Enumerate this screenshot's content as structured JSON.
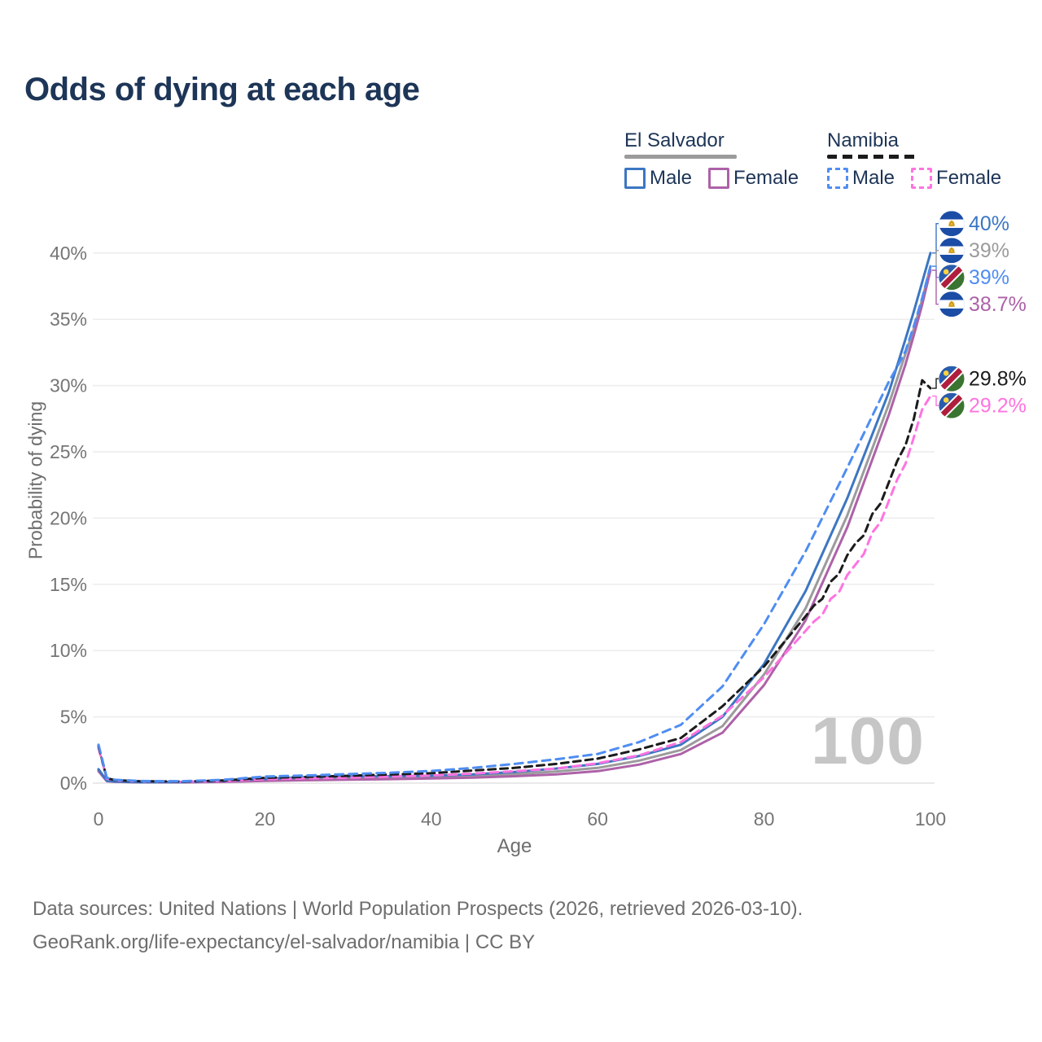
{
  "title": "Odds of dying at each age",
  "legend": {
    "groups": [
      {
        "country": "El Salvador",
        "style": "solid",
        "items": [
          {
            "label": "Male",
            "color": "#3c76c2",
            "dashed": false
          },
          {
            "label": "Female",
            "color": "#ad62a8",
            "dashed": false
          }
        ]
      },
      {
        "country": "Namibia",
        "style": "dashed",
        "items": [
          {
            "label": "Male",
            "color": "#4f8df2",
            "dashed": true
          },
          {
            "label": "Female",
            "color": "#ff73e1",
            "dashed": true
          }
        ]
      }
    ]
  },
  "footer": {
    "line1": "Data sources: United Nations | World Population Prospects (2026, retrieved 2026-03-10).",
    "line2": "GeoRank.org/life-expectancy/el-salvador/namibia | CC BY"
  },
  "chart_data": {
    "type": "line",
    "title": "Odds of dying at each age",
    "xlabel": "Age",
    "ylabel": "Probability of dying",
    "xlim": [
      0,
      100
    ],
    "ylim": [
      0,
      43
    ],
    "grid": "horizontal",
    "legend_position": "top-right",
    "watermark": "100",
    "xticks": [
      0,
      20,
      40,
      60,
      80,
      100
    ],
    "yticks": [
      {
        "value": 0,
        "label": "0%"
      },
      {
        "value": 5,
        "label": "5%"
      },
      {
        "value": 10,
        "label": "10%"
      },
      {
        "value": 15,
        "label": "15%"
      },
      {
        "value": 20,
        "label": "20%"
      },
      {
        "value": 25,
        "label": "25%"
      },
      {
        "value": 30,
        "label": "30%"
      },
      {
        "value": 35,
        "label": "35%"
      },
      {
        "value": 40,
        "label": "40%"
      }
    ],
    "series": [
      {
        "id": "es-total",
        "name": "El Salvador (both sexes)",
        "country": "El Salvador",
        "sex": "total",
        "color": "#9b9b9b",
        "dash": null,
        "flag": "sv",
        "end_label": "39%",
        "values": [
          [
            0,
            1.0
          ],
          [
            1,
            0.16
          ],
          [
            2,
            0.11
          ],
          [
            5,
            0.06
          ],
          [
            10,
            0.07
          ],
          [
            15,
            0.12
          ],
          [
            20,
            0.25
          ],
          [
            25,
            0.32
          ],
          [
            30,
            0.38
          ],
          [
            35,
            0.42
          ],
          [
            40,
            0.45
          ],
          [
            45,
            0.55
          ],
          [
            50,
            0.68
          ],
          [
            55,
            0.88
          ],
          [
            60,
            1.15
          ],
          [
            65,
            1.7
          ],
          [
            70,
            2.5
          ],
          [
            75,
            4.3
          ],
          [
            80,
            8.2
          ],
          [
            85,
            13.2
          ],
          [
            90,
            20.2
          ],
          [
            95,
            28.6
          ],
          [
            97,
            32.4
          ],
          [
            98,
            34.3
          ],
          [
            99,
            36.5
          ],
          [
            100,
            39
          ]
        ]
      },
      {
        "id": "es-female",
        "name": "El Salvador Female",
        "country": "El Salvador",
        "sex": "female",
        "color": "#ad62a8",
        "dash": null,
        "flag": "sv",
        "end_label": "38.7%",
        "values": [
          [
            0,
            0.9
          ],
          [
            1,
            0.15
          ],
          [
            2,
            0.1
          ],
          [
            5,
            0.06
          ],
          [
            10,
            0.06
          ],
          [
            15,
            0.09
          ],
          [
            20,
            0.17
          ],
          [
            25,
            0.22
          ],
          [
            30,
            0.26
          ],
          [
            35,
            0.3
          ],
          [
            40,
            0.35
          ],
          [
            45,
            0.42
          ],
          [
            50,
            0.52
          ],
          [
            55,
            0.66
          ],
          [
            60,
            0.9
          ],
          [
            65,
            1.4
          ],
          [
            70,
            2.2
          ],
          [
            75,
            3.8
          ],
          [
            80,
            7.4
          ],
          [
            85,
            12.3
          ],
          [
            90,
            19.3
          ],
          [
            95,
            27.8
          ],
          [
            97,
            31.6
          ],
          [
            98,
            33.8
          ],
          [
            99,
            36.1
          ],
          [
            100,
            38.7
          ]
        ]
      },
      {
        "id": "es-male",
        "name": "El Salvador Male",
        "country": "El Salvador",
        "sex": "male",
        "color": "#3c76c2",
        "dash": null,
        "flag": "sv",
        "end_label": "40%",
        "values": [
          [
            0,
            1.05
          ],
          [
            1,
            0.18
          ],
          [
            2,
            0.12
          ],
          [
            5,
            0.07
          ],
          [
            10,
            0.08
          ],
          [
            15,
            0.16
          ],
          [
            20,
            0.32
          ],
          [
            25,
            0.44
          ],
          [
            30,
            0.5
          ],
          [
            35,
            0.52
          ],
          [
            40,
            0.56
          ],
          [
            45,
            0.66
          ],
          [
            50,
            0.85
          ],
          [
            55,
            1.1
          ],
          [
            60,
            1.45
          ],
          [
            65,
            2.05
          ],
          [
            70,
            2.9
          ],
          [
            75,
            5.0
          ],
          [
            80,
            9.0
          ],
          [
            85,
            14.5
          ],
          [
            90,
            21.5
          ],
          [
            95,
            29.5
          ],
          [
            97,
            33.5
          ],
          [
            98,
            35.6
          ],
          [
            99,
            37.8
          ],
          [
            100,
            40
          ]
        ]
      },
      {
        "id": "na-female",
        "name": "Namibia Female",
        "country": "Namibia",
        "sex": "female",
        "color": "#ff73e1",
        "dash": [
          10,
          7
        ],
        "flag": "na",
        "end_label": "29.2%",
        "values": [
          [
            0,
            2.65
          ],
          [
            1,
            0.34
          ],
          [
            2,
            0.21
          ],
          [
            5,
            0.13
          ],
          [
            10,
            0.11
          ],
          [
            15,
            0.16
          ],
          [
            20,
            0.3
          ],
          [
            25,
            0.36
          ],
          [
            30,
            0.42
          ],
          [
            35,
            0.5
          ],
          [
            40,
            0.58
          ],
          [
            45,
            0.72
          ],
          [
            50,
            0.9
          ],
          [
            55,
            1.1
          ],
          [
            60,
            1.5
          ],
          [
            65,
            2.1
          ],
          [
            70,
            3.1
          ],
          [
            75,
            5.1
          ],
          [
            80,
            8.0
          ],
          [
            85,
            11.5
          ],
          [
            86,
            12.2
          ],
          [
            87,
            12.7
          ],
          [
            88,
            13.9
          ],
          [
            89,
            14.4
          ],
          [
            90,
            15.7
          ],
          [
            91,
            16.5
          ],
          [
            92,
            17.3
          ],
          [
            93,
            18.9
          ],
          [
            94,
            19.7
          ],
          [
            95,
            21.3
          ],
          [
            96,
            22.9
          ],
          [
            97,
            24.1
          ],
          [
            98,
            26.1
          ],
          [
            99,
            28.2
          ],
          [
            100,
            29.2
          ]
        ]
      },
      {
        "id": "na-total",
        "name": "Namibia (both sexes)",
        "country": "Namibia",
        "sex": "total",
        "color": "#1b1b1b",
        "dash": [
          9,
          6
        ],
        "flag": "na",
        "end_label": "29.8%",
        "values": [
          [
            0,
            2.8
          ],
          [
            1,
            0.37
          ],
          [
            2,
            0.23
          ],
          [
            5,
            0.14
          ],
          [
            10,
            0.12
          ],
          [
            15,
            0.2
          ],
          [
            20,
            0.4
          ],
          [
            25,
            0.47
          ],
          [
            30,
            0.55
          ],
          [
            35,
            0.65
          ],
          [
            40,
            0.75
          ],
          [
            45,
            0.95
          ],
          [
            50,
            1.15
          ],
          [
            55,
            1.45
          ],
          [
            60,
            1.85
          ],
          [
            65,
            2.55
          ],
          [
            70,
            3.4
          ],
          [
            75,
            5.8
          ],
          [
            80,
            8.8
          ],
          [
            85,
            12.6
          ],
          [
            86,
            13.4
          ],
          [
            87,
            13.9
          ],
          [
            88,
            15.2
          ],
          [
            89,
            15.8
          ],
          [
            90,
            17.2
          ],
          [
            91,
            18.1
          ],
          [
            92,
            18.7
          ],
          [
            93,
            20.3
          ],
          [
            94,
            21.1
          ],
          [
            95,
            22.7
          ],
          [
            96,
            24.3
          ],
          [
            97,
            25.5
          ],
          [
            98,
            27.5
          ],
          [
            99,
            30.4
          ],
          [
            100,
            29.8
          ]
        ]
      },
      {
        "id": "na-male",
        "name": "Namibia Male",
        "country": "Namibia",
        "sex": "male",
        "color": "#4f8df2",
        "dash": [
          10,
          7
        ],
        "flag": "na",
        "end_label": "39%",
        "values": [
          [
            0,
            2.9
          ],
          [
            1,
            0.4
          ],
          [
            2,
            0.25
          ],
          [
            5,
            0.16
          ],
          [
            10,
            0.14
          ],
          [
            15,
            0.25
          ],
          [
            20,
            0.5
          ],
          [
            25,
            0.58
          ],
          [
            30,
            0.68
          ],
          [
            35,
            0.78
          ],
          [
            40,
            0.92
          ],
          [
            45,
            1.15
          ],
          [
            50,
            1.45
          ],
          [
            55,
            1.8
          ],
          [
            60,
            2.2
          ],
          [
            65,
            3.1
          ],
          [
            70,
            4.4
          ],
          [
            75,
            7.3
          ],
          [
            80,
            12.0
          ],
          [
            85,
            17.5
          ],
          [
            90,
            23.8
          ],
          [
            95,
            30.3
          ],
          [
            96,
            31.4
          ],
          [
            97,
            32.6
          ],
          [
            98,
            34.5
          ],
          [
            99,
            36.6
          ],
          [
            100,
            39
          ]
        ]
      }
    ],
    "end_label_order": [
      "es-male",
      "es-total",
      "na-male",
      "es-female",
      "na-total",
      "na-female"
    ],
    "flag_colors": {
      "sv": {
        "blue": "#1b4da6",
        "white": "#ffffff",
        "gold": "#f0b62f"
      },
      "na": {
        "blue": "#2a5cad",
        "red": "#b01e3d",
        "green": "#3a7430",
        "white": "#ffffff",
        "sun": "#ffd23f"
      }
    },
    "axis_text_color": "#757575",
    "grid_color": "#ececec"
  }
}
